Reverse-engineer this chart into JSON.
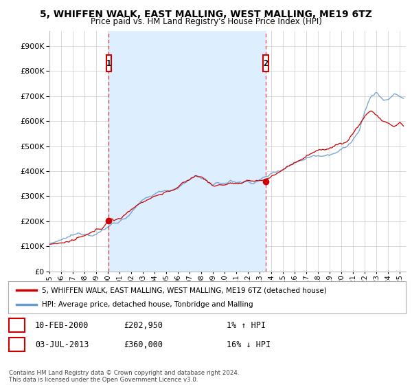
{
  "title": "5, WHIFFEN WALK, EAST MALLING, WEST MALLING, ME19 6TZ",
  "subtitle": "Price paid vs. HM Land Registry's House Price Index (HPI)",
  "ytick_values": [
    0,
    100000,
    200000,
    300000,
    400000,
    500000,
    600000,
    700000,
    800000,
    900000
  ],
  "ylim": [
    0,
    960000
  ],
  "xlim_start": 1995.0,
  "xlim_end": 2025.5,
  "sale1_x": 2000.08,
  "sale1_y": 202950,
  "sale1_label": "1",
  "sale1_date": "10-FEB-2000",
  "sale1_price": "£202,950",
  "sale1_hpi": "1% ↑ HPI",
  "sale2_x": 2013.5,
  "sale2_y": 360000,
  "sale2_label": "2",
  "sale2_date": "03-JUL-2013",
  "sale2_price": "£360,000",
  "sale2_hpi": "16% ↓ HPI",
  "line_color_red": "#cc0000",
  "line_color_blue": "#6699cc",
  "dashed_color": "#cc0000",
  "shade_color": "#ddeeff",
  "legend_label_red": "5, WHIFFEN WALK, EAST MALLING, WEST MALLING, ME19 6TZ (detached house)",
  "legend_label_blue": "HPI: Average price, detached house, Tonbridge and Malling",
  "footer": "Contains HM Land Registry data © Crown copyright and database right 2024.\nThis data is licensed under the Open Government Licence v3.0.",
  "background_color": "#ffffff",
  "grid_color": "#cccccc"
}
